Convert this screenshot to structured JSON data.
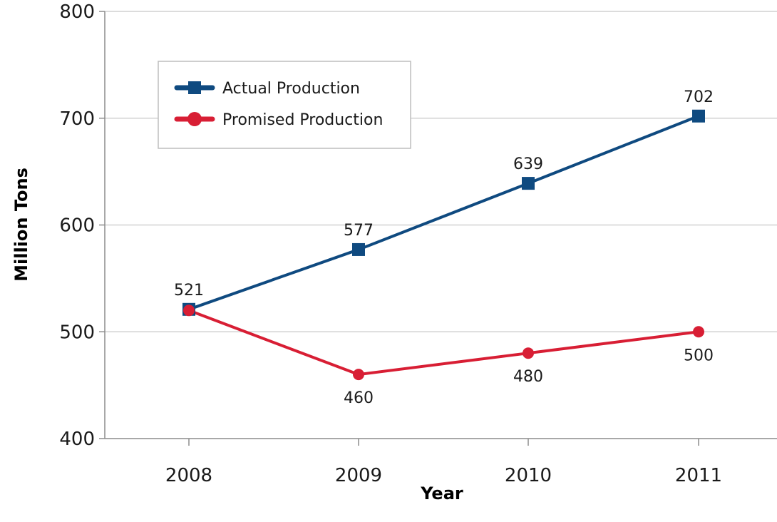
{
  "chart_data": {
    "type": "line",
    "categories": [
      "2008",
      "2009",
      "2010",
      "2011"
    ],
    "xlabel": "Year",
    "ylabel": "Million Tons",
    "ylim": [
      400,
      800
    ],
    "yticks": [
      400,
      500,
      600,
      700,
      800
    ],
    "grid": "horizontal",
    "legend_position": "top-left",
    "series": [
      {
        "name": "Actual Production",
        "color": "#0f4a80",
        "marker": "square",
        "values": [
          521,
          577,
          639,
          702
        ],
        "labels": [
          "521",
          "577",
          "639",
          "702"
        ],
        "label_position": "above"
      },
      {
        "name": "Promised Production",
        "color": "#d81e34",
        "marker": "circle",
        "values": [
          520,
          460,
          480,
          500
        ],
        "labels": [
          null,
          "460",
          "480",
          "500"
        ],
        "label_position": "below"
      }
    ]
  }
}
